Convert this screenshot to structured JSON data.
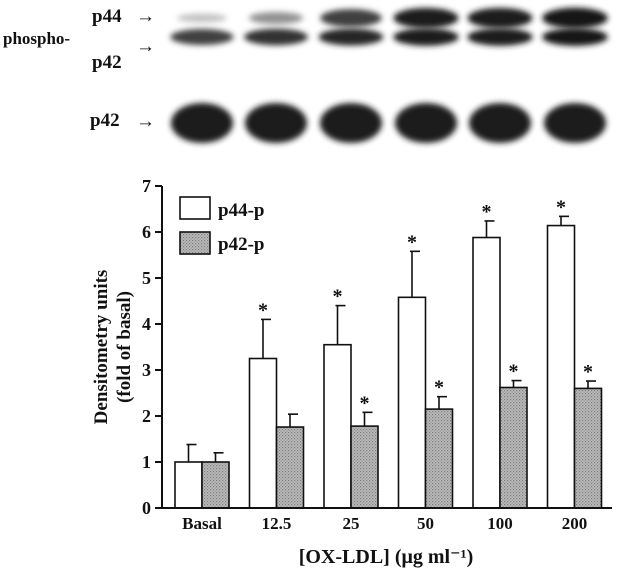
{
  "blot": {
    "row1_labels": {
      "p44": "p44",
      "phospho": "phospho-",
      "p42": "p42"
    },
    "row2_labels": {
      "p42": "p42"
    },
    "arrow_glyph": "→",
    "row1_intensity": {
      "p44": [
        0.25,
        0.45,
        0.8,
        0.95,
        0.95,
        0.98
      ],
      "p42": [
        0.8,
        0.85,
        0.9,
        0.95,
        0.95,
        0.97
      ]
    },
    "row2_intensity": [
      0.95,
      0.95,
      0.95,
      0.95,
      0.95,
      0.95
    ]
  },
  "chart_data": {
    "type": "bar",
    "categories": [
      "Basal",
      "12.5",
      "25",
      "50",
      "100",
      "200"
    ],
    "series": [
      {
        "name": "p44-p",
        "values": [
          1.0,
          3.25,
          3.55,
          4.58,
          5.88,
          6.14
        ],
        "errors": [
          0.38,
          0.85,
          0.85,
          1.0,
          0.36,
          0.2
        ],
        "significant": [
          false,
          true,
          true,
          true,
          true,
          true
        ],
        "fill": "#ffffff"
      },
      {
        "name": "p42-p",
        "values": [
          1.0,
          1.76,
          1.78,
          2.15,
          2.62,
          2.6
        ],
        "errors": [
          0.2,
          0.28,
          0.3,
          0.27,
          0.15,
          0.16
        ],
        "significant": [
          false,
          false,
          true,
          true,
          true,
          true
        ],
        "fill": "#b4b4b4"
      }
    ],
    "ylabel_line1": "Densitometry units",
    "ylabel_line2": "(fold of basal)",
    "xlabel": "[OX-LDL] (μg ml⁻¹)",
    "yticks": [
      "0",
      "1",
      "2",
      "3",
      "4",
      "5",
      "6",
      "7"
    ],
    "ylim": [
      0,
      7
    ],
    "significance_marker": "*",
    "legend_position": "top-left"
  }
}
